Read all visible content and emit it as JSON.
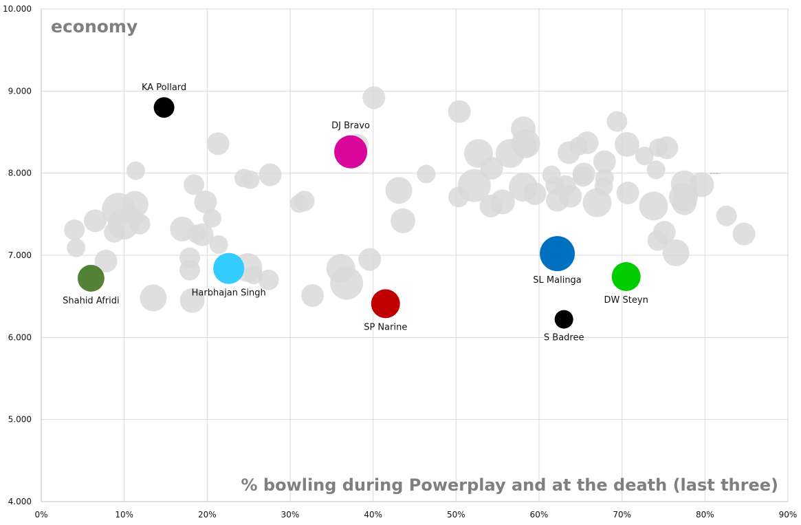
{
  "chart_data": {
    "type": "scatter",
    "title": "economy",
    "xlabel": "% bowling during Powerplay and at the death (last three)",
    "ylabel": "economy",
    "xlim": [
      0,
      90
    ],
    "ylim": [
      4,
      10
    ],
    "x_ticks": [
      "0%",
      "10%",
      "20%",
      "30%",
      "40%",
      "50%",
      "60%",
      "70%",
      "80%",
      "90%"
    ],
    "x_tick_values": [
      0,
      10,
      20,
      30,
      40,
      50,
      60,
      70,
      80,
      90
    ],
    "y_ticks": [
      "4.000",
      "5.000",
      "6.000",
      "7.000",
      "8.000",
      "9.000",
      "10.000"
    ],
    "y_tick_values": [
      4,
      5,
      6,
      7,
      8,
      9,
      10
    ],
    "grid": true,
    "stray_label": "KA Pollard",
    "highlighted": [
      {
        "name": "KA Pollard",
        "x": 14.8,
        "y": 8.8,
        "size": 1.0,
        "color": "#000000",
        "label_pos": "above"
      },
      {
        "name": "DJ Bravo",
        "x": 37.3,
        "y": 8.26,
        "size": 1.6,
        "color": "#d9069b",
        "label_pos": "above"
      },
      {
        "name": "Shahid Afridi",
        "x": 6.0,
        "y": 6.72,
        "size": 1.3,
        "color": "#538135",
        "label_pos": "below"
      },
      {
        "name": "Harbhajan Singh",
        "x": 22.6,
        "y": 6.84,
        "size": 1.5,
        "color": "#33ccff",
        "label_pos": "below"
      },
      {
        "name": "SP Narine",
        "x": 41.5,
        "y": 6.41,
        "size": 1.4,
        "color": "#c00000",
        "label_pos": "below"
      },
      {
        "name": "SL Malinga",
        "x": 62.2,
        "y": 7.02,
        "size": 1.7,
        "color": "#0070c0",
        "label_pos": "below"
      },
      {
        "name": "S Badree",
        "x": 63.0,
        "y": 6.22,
        "size": 0.9,
        "color": "#000000",
        "label_pos": "below"
      },
      {
        "name": "DW Steyn",
        "x": 70.5,
        "y": 6.74,
        "size": 1.4,
        "color": "#00cc00",
        "label_pos": "below"
      }
    ],
    "background_series": {
      "name": "other bowlers",
      "color": "#d9d9d9",
      "points": [
        [
          4.0,
          7.31,
          1.0
        ],
        [
          4.2,
          7.09,
          0.9
        ],
        [
          6.5,
          7.42,
          1.1
        ],
        [
          7.8,
          6.93,
          1.1
        ],
        [
          8.8,
          7.28,
          1.0
        ],
        [
          9.3,
          7.56,
          1.6
        ],
        [
          9.9,
          7.38,
          1.5
        ],
        [
          11.3,
          7.62,
          1.3
        ],
        [
          11.4,
          8.03,
          0.9
        ],
        [
          11.2,
          7.46,
          0.9
        ],
        [
          11.9,
          7.38,
          1.0
        ],
        [
          13.5,
          6.48,
          1.3
        ],
        [
          17.0,
          7.32,
          1.2
        ],
        [
          17.9,
          6.97,
          1.0
        ],
        [
          17.9,
          6.82,
          1.0
        ],
        [
          18.2,
          6.45,
          1.2
        ],
        [
          18.4,
          7.86,
          1.0
        ],
        [
          18.7,
          7.26,
          0.9
        ],
        [
          19.4,
          7.25,
          1.1
        ],
        [
          19.8,
          7.65,
          1.1
        ],
        [
          20.6,
          7.45,
          0.9
        ],
        [
          21.4,
          7.13,
          0.9
        ],
        [
          21.3,
          8.36,
          1.1
        ],
        [
          24.4,
          7.94,
          0.9
        ],
        [
          24.9,
          6.85,
          1.4
        ],
        [
          25.2,
          7.92,
          0.9
        ],
        [
          25.6,
          6.76,
          0.9
        ],
        [
          27.4,
          6.7,
          1.0
        ],
        [
          27.6,
          7.98,
          1.1
        ],
        [
          31.1,
          7.63,
          0.9
        ],
        [
          31.7,
          7.66,
          1.0
        ],
        [
          32.7,
          6.51,
          1.1
        ],
        [
          36.1,
          6.84,
          1.4
        ],
        [
          36.8,
          6.66,
          1.6
        ],
        [
          38.1,
          8.34,
          1.1
        ],
        [
          39.6,
          6.95,
          1.1
        ],
        [
          40.1,
          8.92,
          1.1
        ],
        [
          43.1,
          7.79,
          1.3
        ],
        [
          43.6,
          7.42,
          1.2
        ],
        [
          46.4,
          7.99,
          0.9
        ],
        [
          50.3,
          7.71,
          1.0
        ],
        [
          50.4,
          8.75,
          1.1
        ],
        [
          52.2,
          7.85,
          1.6
        ],
        [
          52.7,
          8.24,
          1.4
        ],
        [
          54.2,
          7.6,
          1.1
        ],
        [
          54.3,
          8.06,
          1.1
        ],
        [
          55.6,
          7.65,
          1.2
        ],
        [
          56.5,
          8.24,
          1.4
        ],
        [
          58.1,
          7.83,
          1.4
        ],
        [
          58.1,
          8.54,
          1.2
        ],
        [
          58.4,
          8.36,
          1.4
        ],
        [
          58.5,
          8.33,
          1.0
        ],
        [
          59.5,
          7.75,
          1.1
        ],
        [
          61.5,
          7.98,
          0.9
        ],
        [
          61.9,
          7.85,
          0.9
        ],
        [
          62.2,
          7.67,
          1.1
        ],
        [
          63.2,
          7.85,
          1.0
        ],
        [
          63.6,
          8.25,
          1.1
        ],
        [
          63.8,
          7.72,
          1.1
        ],
        [
          64.8,
          8.33,
          0.9
        ],
        [
          65.3,
          7.96,
          1.0
        ],
        [
          65.4,
          7.99,
          1.1
        ],
        [
          65.8,
          8.37,
          1.1
        ],
        [
          67.0,
          7.64,
          1.4
        ],
        [
          67.8,
          7.84,
          0.9
        ],
        [
          67.9,
          7.94,
          0.9
        ],
        [
          67.9,
          8.14,
          1.1
        ],
        [
          69.4,
          8.63,
          1.0
        ],
        [
          70.6,
          8.35,
          1.2
        ],
        [
          70.7,
          7.76,
          1.1
        ],
        [
          72.7,
          8.21,
          0.9
        ],
        [
          73.8,
          7.6,
          1.4
        ],
        [
          74.1,
          8.04,
          0.9
        ],
        [
          74.3,
          7.18,
          1.0
        ],
        [
          74.4,
          8.31,
          0.9
        ],
        [
          75.1,
          7.28,
          1.1
        ],
        [
          75.4,
          8.31,
          1.1
        ],
        [
          76.5,
          7.03,
          1.3
        ],
        [
          77.5,
          7.87,
          1.3
        ],
        [
          77.4,
          7.71,
          1.4
        ],
        [
          77.5,
          7.64,
          1.2
        ],
        [
          79.6,
          7.86,
          1.2
        ],
        [
          82.6,
          7.48,
          1.0
        ],
        [
          84.7,
          7.26,
          1.1
        ]
      ]
    }
  }
}
